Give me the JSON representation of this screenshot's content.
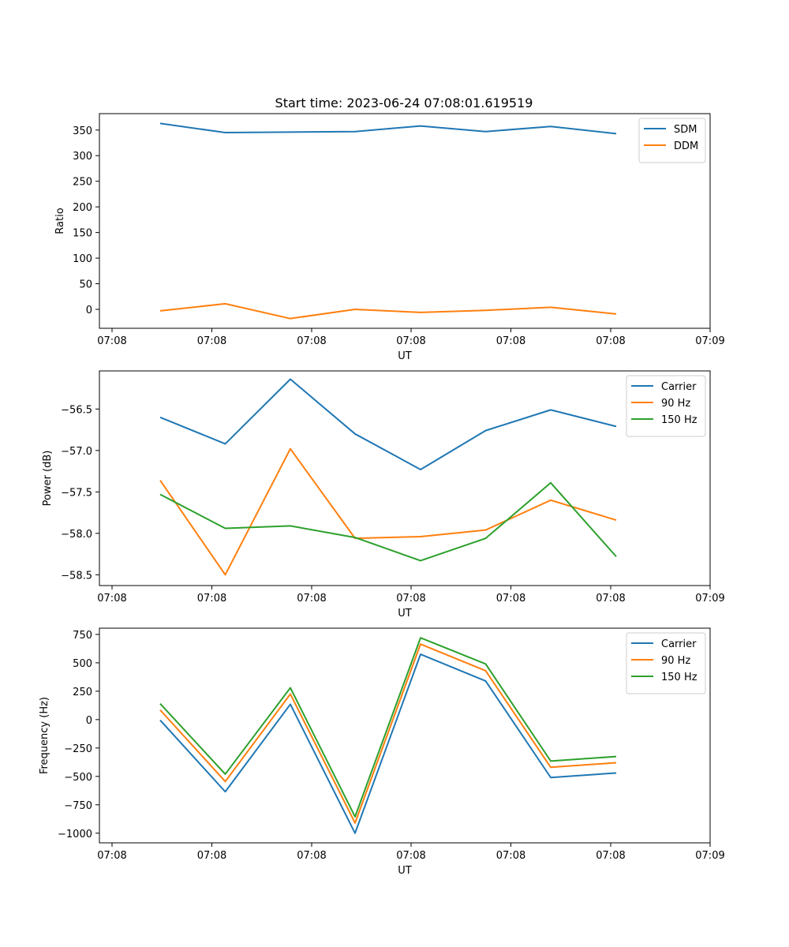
{
  "title": "Start time: 2023-06-24 07:08:01.619519",
  "chart_data": [
    {
      "type": "line",
      "ylabel": "Ratio",
      "xlabel": "UT",
      "x_tick_labels": [
        "07:08",
        "07:08",
        "07:08",
        "07:08",
        "07:08",
        "07:08",
        "07:09"
      ],
      "y_ticks": [
        0,
        50,
        100,
        150,
        200,
        250,
        300,
        350
      ],
      "ylim": [
        -37,
        382
      ],
      "legend_position": "top-right",
      "series": [
        {
          "name": "SDM",
          "color": "#1f77b4",
          "values": [
            363,
            345,
            346,
            347,
            358,
            347,
            357,
            343
          ]
        },
        {
          "name": "DDM",
          "color": "#ff7f0e",
          "values": [
            -3,
            11,
            -18,
            0,
            -6,
            -2,
            4,
            -9
          ]
        }
      ]
    },
    {
      "type": "line",
      "ylabel": "Power (dB)",
      "xlabel": "UT",
      "x_tick_labels": [
        "07:08",
        "07:08",
        "07:08",
        "07:08",
        "07:08",
        "07:08",
        "07:09"
      ],
      "y_ticks": [
        -58.5,
        -58.0,
        -57.5,
        -57.0,
        -56.5
      ],
      "y_tick_labels": [
        "−58.5",
        "−58.0",
        "−57.5",
        "−57.0",
        "−56.5"
      ],
      "ylim": [
        -58.63,
        -56.04
      ],
      "legend_position": "top-right",
      "series": [
        {
          "name": "Carrier",
          "color": "#1f77b4",
          "values": [
            -56.6,
            -56.92,
            -56.14,
            -56.8,
            -57.23,
            -56.76,
            -56.51,
            -56.71
          ]
        },
        {
          "name": "90 Hz",
          "color": "#ff7f0e",
          "values": [
            -57.36,
            -58.5,
            -56.98,
            -58.06,
            -58.04,
            -57.96,
            -57.6,
            -57.84
          ]
        },
        {
          "name": "150 Hz",
          "color": "#2ca02c",
          "values": [
            -57.53,
            -57.94,
            -57.91,
            -58.05,
            -58.33,
            -58.06,
            -57.39,
            -58.28
          ]
        }
      ]
    },
    {
      "type": "line",
      "ylabel": "Frequency (Hz)",
      "xlabel": "UT",
      "x_tick_labels": [
        "07:08",
        "07:08",
        "07:08",
        "07:08",
        "07:08",
        "07:08",
        "07:09"
      ],
      "y_ticks": [
        -1000,
        -750,
        -500,
        -250,
        0,
        250,
        500,
        750
      ],
      "y_tick_labels": [
        "−1000",
        "−750",
        "−500",
        "−250",
        "0",
        "250",
        "500",
        "750"
      ],
      "ylim": [
        -1085,
        805
      ],
      "legend_position": "top-right",
      "series": [
        {
          "name": "Carrier",
          "color": "#1f77b4",
          "values": [
            -5,
            -635,
            135,
            -1000,
            575,
            340,
            -510,
            -470
          ]
        },
        {
          "name": "90 Hz",
          "color": "#ff7f0e",
          "values": [
            85,
            -545,
            225,
            -910,
            665,
            430,
            -420,
            -380
          ]
        },
        {
          "name": "150 Hz",
          "color": "#2ca02c",
          "values": [
            140,
            -480,
            280,
            -855,
            720,
            490,
            -365,
            -325
          ]
        }
      ]
    }
  ]
}
